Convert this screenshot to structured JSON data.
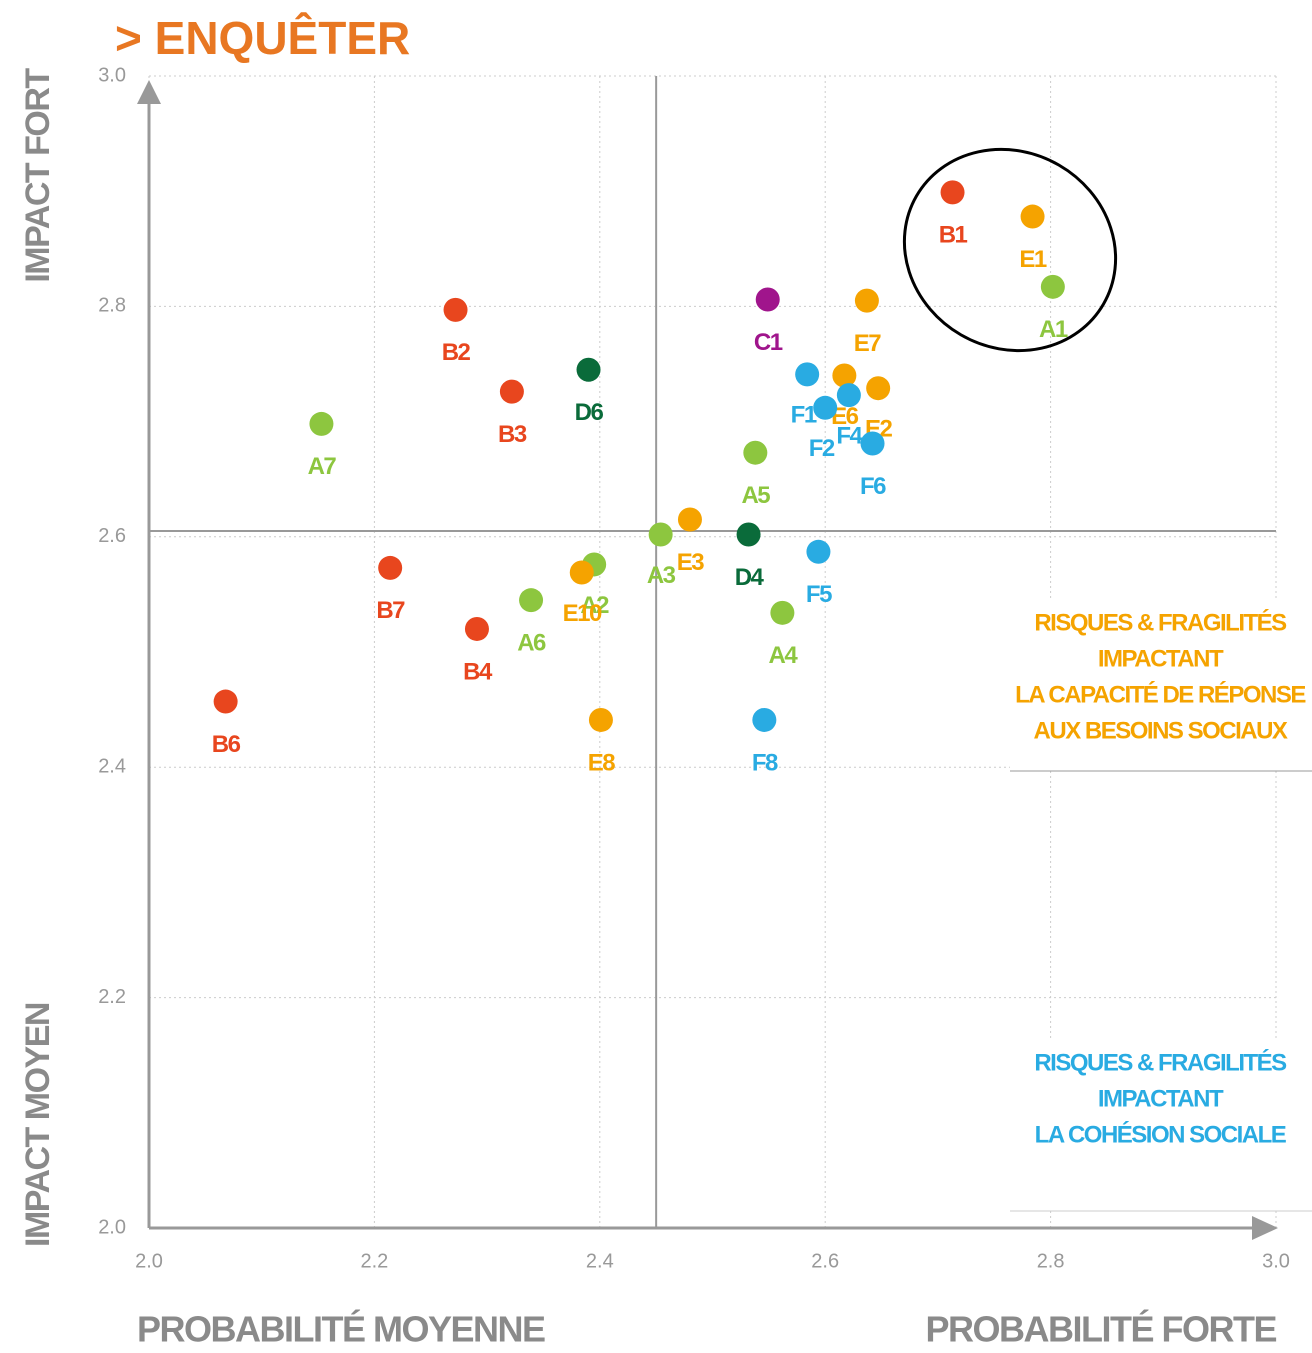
{
  "chart_data": {
    "type": "scatter",
    "title": "> ENQUÊTER",
    "y_label_top": "IMPACT FORT",
    "y_label_bottom": "IMPACT MOYEN",
    "x_label_left": "PROBABILITÉ MOYENNE",
    "x_label_right": "PROBABILITÉ FORTE",
    "xlim": [
      2.0,
      3.0
    ],
    "ylim": [
      2.0,
      3.0
    ],
    "xticks": [
      {
        "value": 2.0,
        "label": "2.0"
      },
      2.2,
      2.4,
      2.6,
      2.8,
      {
        "value": 3.0,
        "label": "3.0"
      }
    ],
    "yticks": [
      {
        "value": 2.0,
        "label": "2.0"
      },
      2.2,
      2.4,
      2.6,
      2.8,
      {
        "value": 3.0,
        "label": "3.0"
      }
    ],
    "grid": true,
    "reference_lines": {
      "x": 2.45,
      "y": 2.605
    },
    "points": [
      {
        "label": "B1",
        "x": 2.713,
        "y": 2.899,
        "color": "#e8461e"
      },
      {
        "label": "E1",
        "x": 2.784,
        "y": 2.878,
        "color": "#f5a300"
      },
      {
        "label": "A1",
        "x": 2.802,
        "y": 2.817,
        "color": "#8dc63f"
      },
      {
        "label": "C1",
        "x": 2.549,
        "y": 2.806,
        "color": "#a0158c"
      },
      {
        "label": "E7",
        "x": 2.637,
        "y": 2.805,
        "color": "#f5a300"
      },
      {
        "label": "B2",
        "x": 2.272,
        "y": 2.797,
        "color": "#e8461e"
      },
      {
        "label": "D6",
        "x": 2.39,
        "y": 2.745,
        "color": "#0a6b3a"
      },
      {
        "label": "B3",
        "x": 2.322,
        "y": 2.726,
        "color": "#e8461e"
      },
      {
        "label": "A7",
        "x": 2.153,
        "y": 2.698,
        "color": "#8dc63f"
      },
      {
        "label": "F1",
        "x": 2.584,
        "y": 2.741,
        "color": "#29abe2"
      },
      {
        "label": "E6",
        "x": 2.617,
        "y": 2.74,
        "color": "#f5a300"
      },
      {
        "label": "F2",
        "x": 2.6,
        "y": 2.712,
        "color": "#29abe2"
      },
      {
        "label": "F4",
        "x": 2.621,
        "y": 2.723,
        "color": "#29abe2"
      },
      {
        "label": "E2",
        "x": 2.647,
        "y": 2.729,
        "color": "#f5a300"
      },
      {
        "label": "F6",
        "x": 2.642,
        "y": 2.681,
        "color": "#29abe2"
      },
      {
        "label": "A5",
        "x": 2.538,
        "y": 2.673,
        "color": "#8dc63f"
      },
      {
        "label": "E3",
        "x": 2.48,
        "y": 2.615,
        "color": "#f5a300"
      },
      {
        "label": "A3",
        "x": 2.454,
        "y": 2.602,
        "color": "#8dc63f"
      },
      {
        "label": "D4",
        "x": 2.532,
        "y": 2.602,
        "color": "#0a6b3a"
      },
      {
        "label": "F5",
        "x": 2.594,
        "y": 2.587,
        "color": "#29abe2"
      },
      {
        "label": "A2",
        "x": 2.395,
        "y": 2.576,
        "color": "#8dc63f"
      },
      {
        "label": "E10",
        "x": 2.384,
        "y": 2.569,
        "color": "#f5a300"
      },
      {
        "label": "B7",
        "x": 2.214,
        "y": 2.573,
        "color": "#e8461e"
      },
      {
        "label": "A6",
        "x": 2.339,
        "y": 2.545,
        "color": "#8dc63f"
      },
      {
        "label": "B4",
        "x": 2.291,
        "y": 2.52,
        "color": "#e8461e"
      },
      {
        "label": "A4",
        "x": 2.562,
        "y": 2.534,
        "color": "#8dc63f"
      },
      {
        "label": "B6",
        "x": 2.068,
        "y": 2.457,
        "color": "#e8461e"
      },
      {
        "label": "E8",
        "x": 2.401,
        "y": 2.441,
        "color": "#f5a300"
      },
      {
        "label": "F8",
        "x": 2.546,
        "y": 2.441,
        "color": "#29abe2"
      }
    ],
    "annotations": [
      {
        "lines": [
          "RISQUES & FRAGILITÉS",
          "IMPACTANT",
          "LA CAPACITÉ DE RÉPONSE",
          "AUX BESOINS SOCIAUX"
        ],
        "color": "#f5a300"
      },
      {
        "lines": [
          "RISQUES & FRAGILITÉS",
          "IMPACTANT",
          "LA COHÉSION SOCIALE"
        ],
        "color": "#29abe2"
      }
    ]
  }
}
